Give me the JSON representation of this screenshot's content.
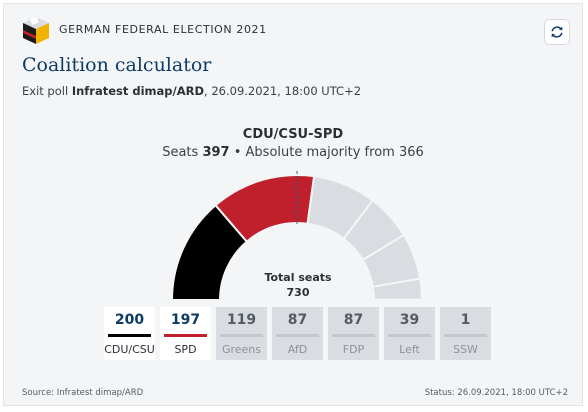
{
  "header": {
    "kicker": "GERMAN FEDERAL ELECTION 2021",
    "title": "Coalition calculator",
    "subtitle_prefix": "Exit poll",
    "subtitle_source": "Infratest dimap/ARD",
    "subtitle_suffix": ", 26.09.2021, 18:00 UTC+2"
  },
  "coalition": {
    "name": "CDU/CSU-SPD",
    "seats_label": "Seats",
    "seats": "397",
    "majority_text": "• Absolute majority from 366"
  },
  "total": {
    "label": "Total seats",
    "value": "730"
  },
  "parties": [
    {
      "name": "CDU/CSU",
      "seats": "200",
      "color": "#000000",
      "selected": true
    },
    {
      "name": "SPD",
      "seats": "197",
      "color": "#c0202b",
      "selected": true
    },
    {
      "name": "Greens",
      "seats": "119",
      "color": "#d9dce1",
      "selected": false
    },
    {
      "name": "AfD",
      "seats": "87",
      "color": "#d9dce1",
      "selected": false
    },
    {
      "name": "FDP",
      "seats": "87",
      "color": "#d9dce1",
      "selected": false
    },
    {
      "name": "Left",
      "seats": "39",
      "color": "#d9dce1",
      "selected": false
    },
    {
      "name": "SSW",
      "seats": "1",
      "color": "#d9dce1",
      "selected": false
    }
  ],
  "colors": {
    "title": "#0e3b66",
    "background": "#f4f5f7",
    "unselected_segment": "#d9dce1",
    "majority_marker": "#3a5a8a"
  },
  "footer": {
    "source": "Source: Infratest dimap/ARD",
    "status": "Status: 26.09.2021, 18:00 UTC+2"
  },
  "icons": {
    "logo": "ballot-box-logo-icon",
    "refresh": "refresh-icon"
  }
}
